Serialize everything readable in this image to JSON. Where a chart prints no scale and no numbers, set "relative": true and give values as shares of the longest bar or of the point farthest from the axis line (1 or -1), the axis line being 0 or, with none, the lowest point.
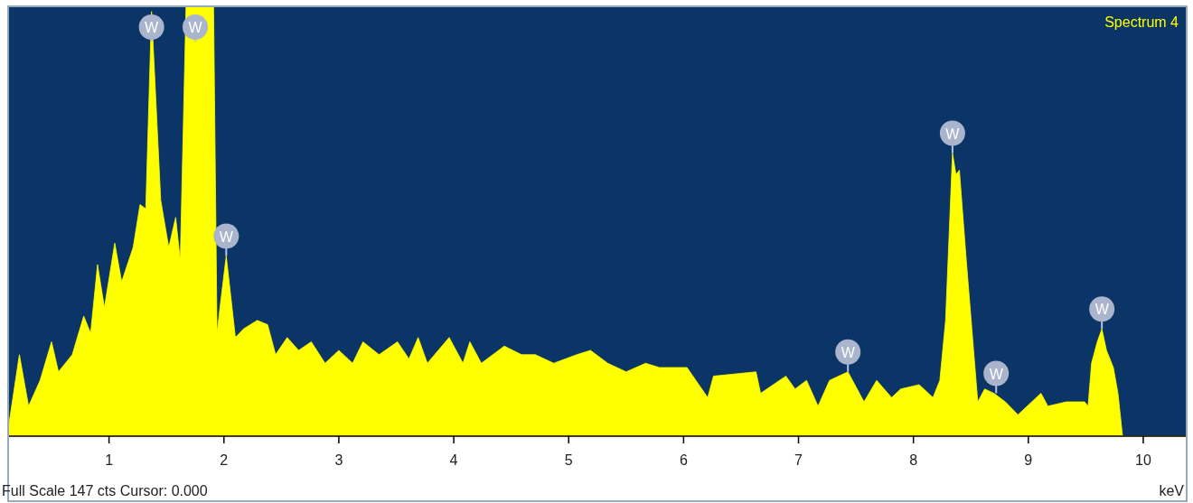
{
  "chart_data": {
    "type": "area",
    "title": "Spectrum 4",
    "xlabel": "keV",
    "relative": true,
    "grid": false,
    "annotations": [
      {
        "text": "W",
        "x": 1.37,
        "y": 0.99
      },
      {
        "text": "W",
        "x": 1.75,
        "y": 1
      },
      {
        "text": "W",
        "x": 2.02,
        "y": 0.42
      },
      {
        "text": "W",
        "x": 7.43,
        "y": 0.15
      },
      {
        "text": "W",
        "x": 8.34,
        "y": 0.66
      },
      {
        "text": "W",
        "x": 8.72,
        "y": 0.1
      },
      {
        "text": "W",
        "x": 9.64,
        "y": 0.25
      },
      "Full Scale 147 cts Cursor: 0.000"
    ],
    "xlim": [
      0.13,
      10.37
    ],
    "xticks": [
      1,
      2,
      3,
      4,
      5,
      6,
      7,
      8,
      9,
      10
    ],
    "series": [
      {
        "color": "#ffff00",
        "x": [
          0.13,
          0.22,
          0.3,
          0.4,
          0.5,
          0.56,
          0.68,
          0.78,
          0.84,
          0.9,
          0.96,
          1.05,
          1.11,
          1.21,
          1.27,
          1.32,
          1.37,
          1.45,
          1.52,
          1.58,
          1.62,
          1.67,
          1.91,
          1.94,
          1.97,
          2.02,
          2.1,
          2.17,
          2.29,
          2.38,
          2.45,
          2.55,
          2.65,
          2.76,
          2.88,
          3.0,
          3.12,
          3.21,
          3.35,
          3.51,
          3.61,
          3.69,
          3.77,
          3.96,
          4.08,
          4.14,
          4.24,
          4.44,
          4.59,
          4.71,
          4.87,
          5.07,
          5.19,
          5.34,
          5.5,
          5.67,
          5.79,
          6.03,
          6.21,
          6.26,
          6.63,
          6.67,
          6.89,
          6.97,
          7.07,
          7.17,
          7.27,
          7.43,
          7.57,
          7.68,
          7.81,
          7.89,
          8.05,
          8.17,
          8.23,
          8.28,
          8.34,
          8.37,
          8.4,
          8.46,
          8.56,
          8.62,
          8.7,
          8.8,
          8.91,
          9.11,
          9.17,
          9.33,
          9.49,
          9.52,
          9.55,
          9.6,
          9.64,
          9.68,
          9.74,
          9.78,
          9.82,
          10.37
        ],
        "values": [
          0.03,
          0.19,
          0.07,
          0.13,
          0.22,
          0.15,
          0.19,
          0.28,
          0.24,
          0.4,
          0.3,
          0.45,
          0.36,
          0.44,
          0.54,
          0.53,
          0.99,
          0.55,
          0.44,
          0.51,
          0.41,
          1,
          1,
          0.24,
          0.31,
          0.42,
          0.23,
          0.25,
          0.27,
          0.26,
          0.19,
          0.23,
          0.2,
          0.22,
          0.17,
          0.2,
          0.17,
          0.22,
          0.19,
          0.22,
          0.18,
          0.23,
          0.17,
          0.23,
          0.17,
          0.22,
          0.17,
          0.21,
          0.19,
          0.19,
          0.17,
          0.19,
          0.2,
          0.17,
          0.15,
          0.17,
          0.16,
          0.16,
          0.09,
          0.14,
          0.15,
          0.1,
          0.14,
          0.11,
          0.13,
          0.07,
          0.13,
          0.15,
          0.08,
          0.13,
          0.09,
          0.11,
          0.12,
          0.09,
          0.13,
          0.27,
          0.66,
          0.61,
          0.62,
          0.41,
          0.08,
          0.11,
          0.1,
          0.08,
          0.05,
          0.1,
          0.07,
          0.08,
          0.08,
          0.07,
          0.17,
          0.22,
          0.25,
          0.2,
          0.16,
          0.1,
          0,
          0
        ]
      }
    ]
  }
}
